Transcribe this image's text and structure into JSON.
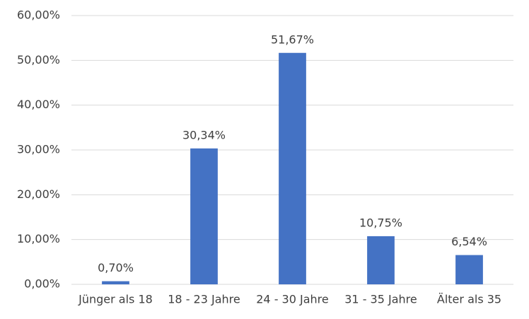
{
  "chart_data": {
    "type": "bar",
    "categories": [
      "Jünger als 18",
      "18 - 23 Jahre",
      "24 - 30 Jahre",
      "31 - 35 Jahre",
      "Älter als 35"
    ],
    "values": [
      0.7,
      30.34,
      51.67,
      10.75,
      6.54
    ],
    "value_labels": [
      "0,70%",
      "30,34%",
      "51,67%",
      "10,75%",
      "6,54%"
    ],
    "color": "#4472c4",
    "ylim": [
      0,
      60
    ],
    "yticks": [
      {
        "value": 0,
        "label": "0,00%"
      },
      {
        "value": 10,
        "label": "10,00%"
      },
      {
        "value": 20,
        "label": "20,00%"
      },
      {
        "value": 30,
        "label": "30,00%"
      },
      {
        "value": 40,
        "label": "40,00%"
      },
      {
        "value": 50,
        "label": "50,00%"
      },
      {
        "value": 60,
        "label": "60,00%"
      }
    ],
    "grid": true
  }
}
